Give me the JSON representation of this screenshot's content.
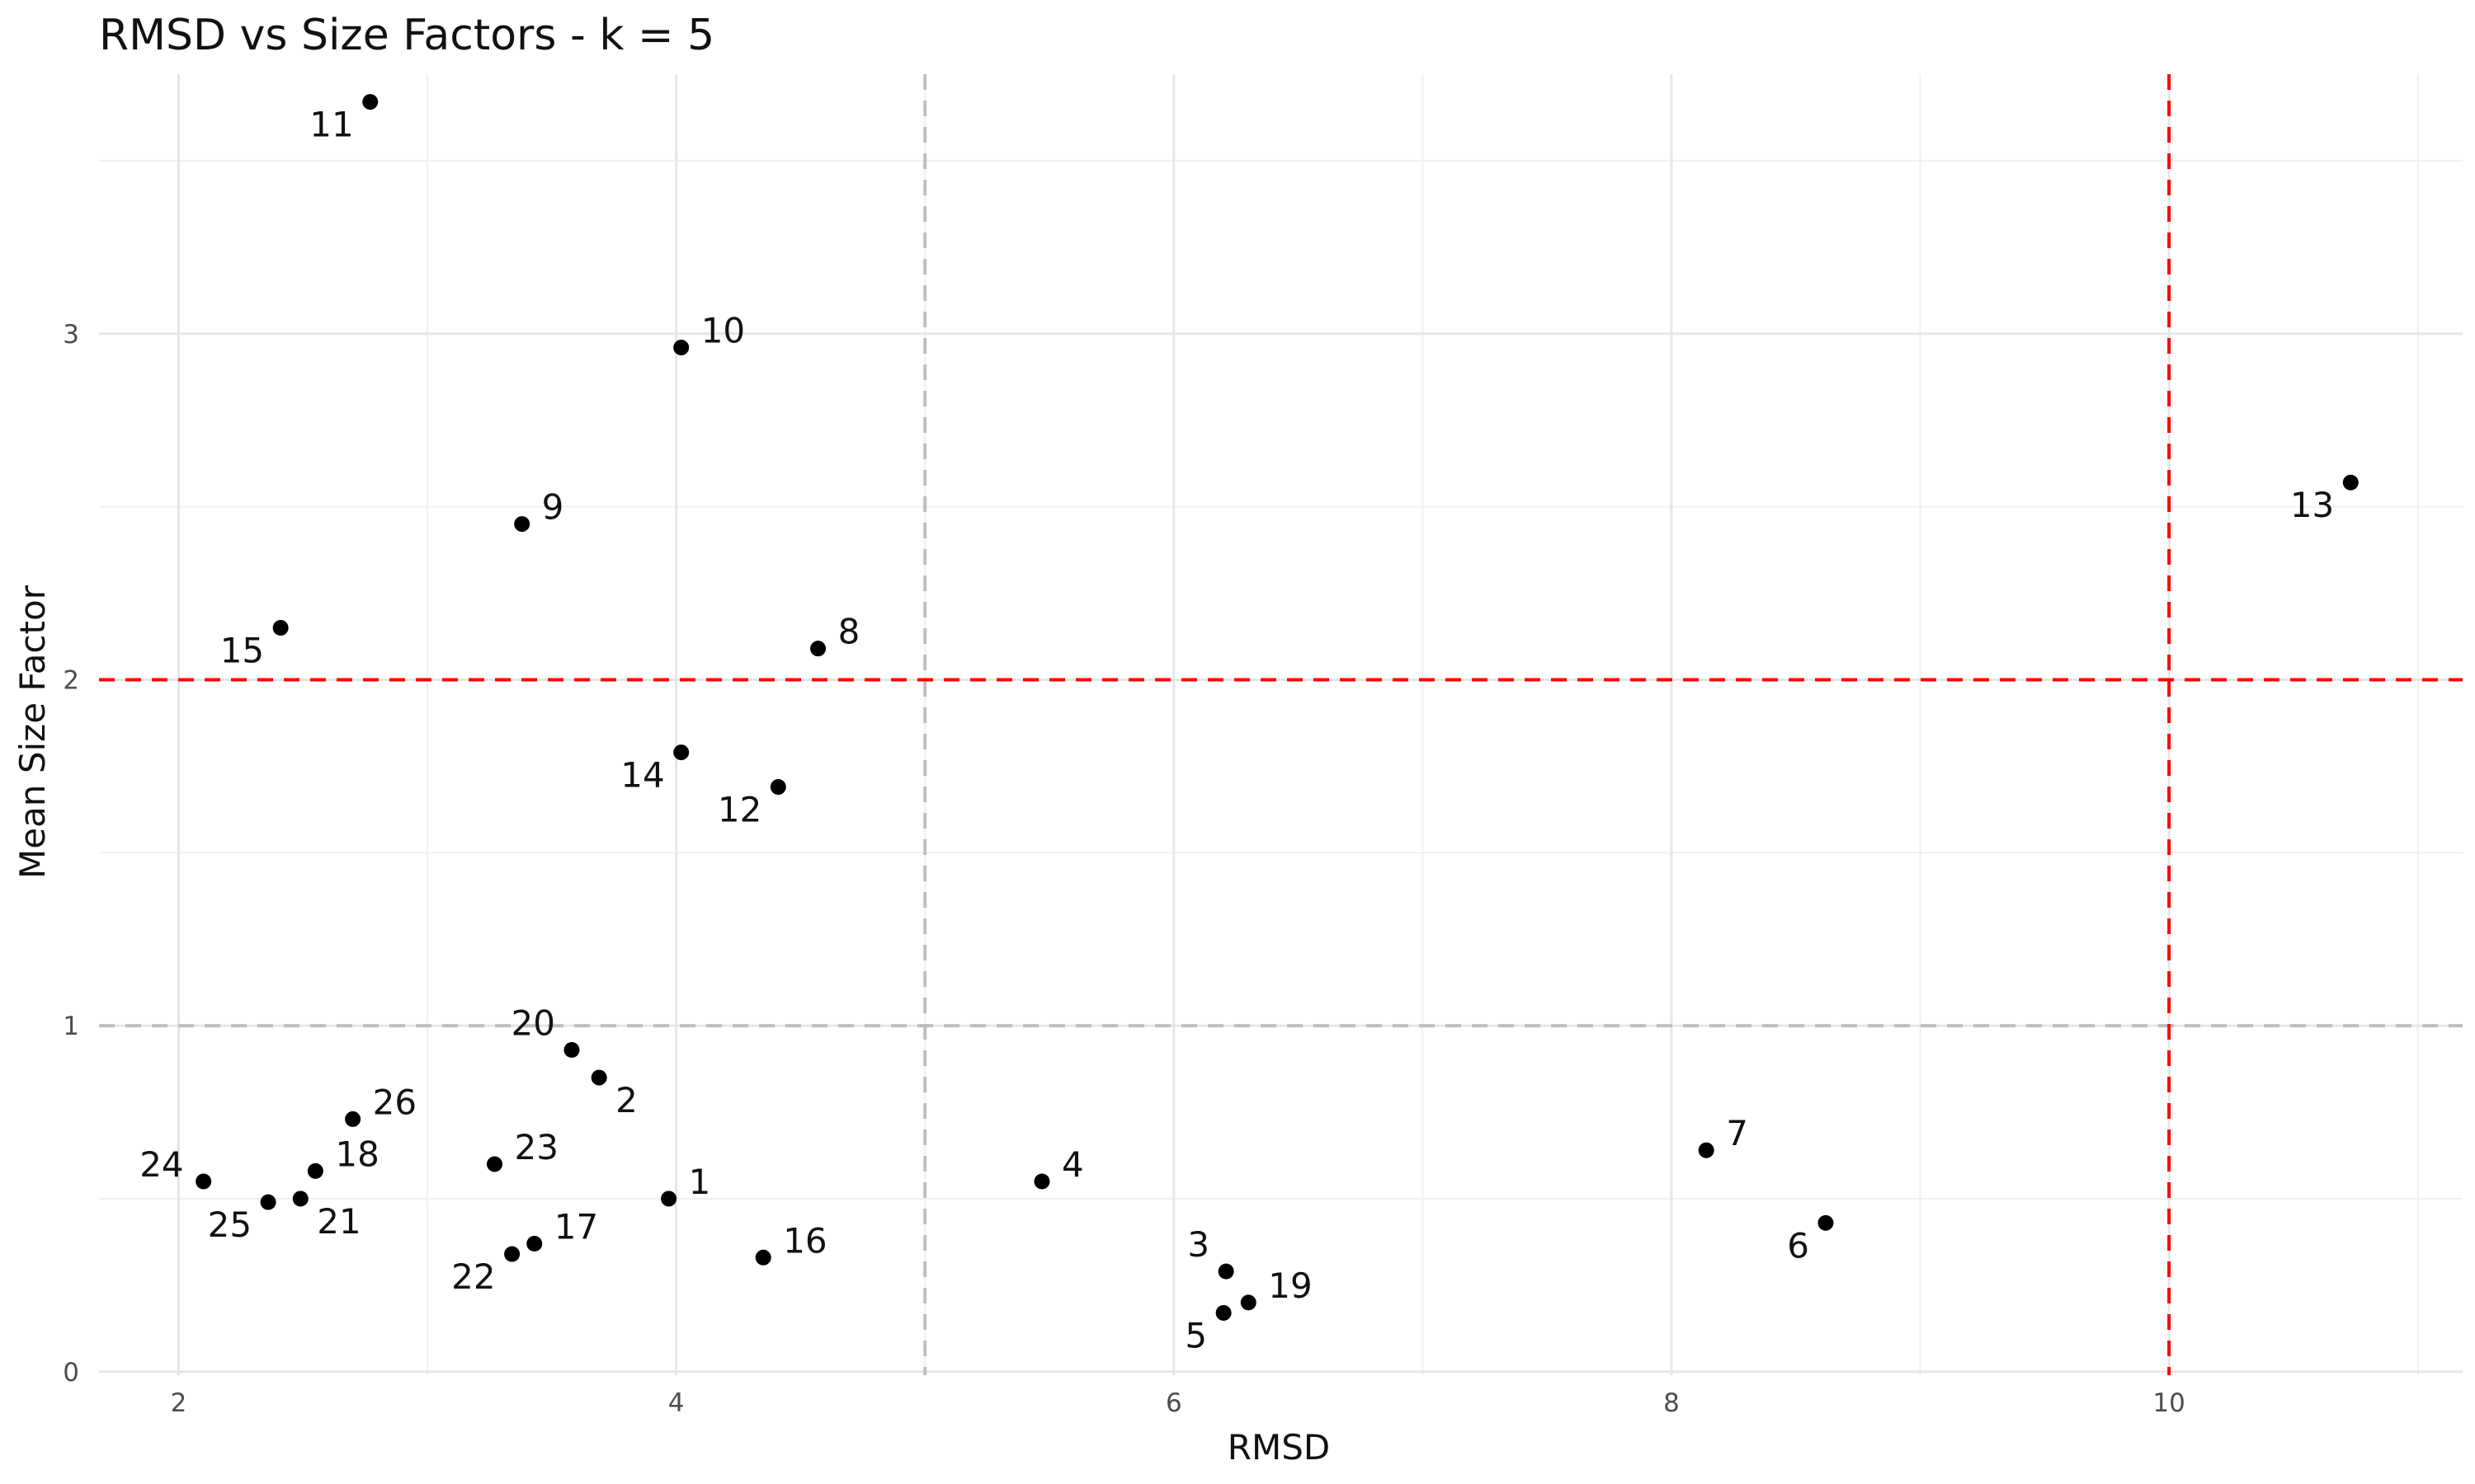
{
  "chart_data": {
    "type": "scatter",
    "title": "RMSD vs Size Factors - k = 5",
    "xlabel": "RMSD",
    "ylabel": "Mean Size Factor",
    "xlim": [
      1.68,
      11.18
    ],
    "ylim": [
      -0.01,
      3.75
    ],
    "x_ticks": [
      2,
      4,
      6,
      8,
      10
    ],
    "y_ticks": [
      0,
      1,
      2,
      3
    ],
    "grid": true,
    "legend": "none",
    "reference_lines": [
      {
        "axis": "x",
        "value": 5,
        "color": "#bebebe",
        "style": "dashed"
      },
      {
        "axis": "y",
        "value": 1,
        "color": "#bebebe",
        "style": "dashed"
      },
      {
        "axis": "x",
        "value": 10,
        "color": "#ff0000",
        "style": "dashed"
      },
      {
        "axis": "y",
        "value": 2,
        "color": "#ff0000",
        "style": "dashed"
      }
    ],
    "points": [
      {
        "label": "1",
        "x": 3.97,
        "y": 0.5,
        "label_pos": "right"
      },
      {
        "label": "2",
        "x": 3.69,
        "y": 0.85,
        "label_pos": "below-right"
      },
      {
        "label": "3",
        "x": 6.21,
        "y": 0.29,
        "label_pos": "above-left"
      },
      {
        "label": "4",
        "x": 5.47,
        "y": 0.55,
        "label_pos": "right"
      },
      {
        "label": "5",
        "x": 6.2,
        "y": 0.17,
        "label_pos": "below-left"
      },
      {
        "label": "6",
        "x": 8.62,
        "y": 0.43,
        "label_pos": "below-left"
      },
      {
        "label": "7",
        "x": 8.14,
        "y": 0.64,
        "label_pos": "right"
      },
      {
        "label": "8",
        "x": 4.57,
        "y": 2.09,
        "label_pos": "right"
      },
      {
        "label": "9",
        "x": 3.38,
        "y": 2.45,
        "label_pos": "right"
      },
      {
        "label": "10",
        "x": 4.02,
        "y": 2.96,
        "label_pos": "right"
      },
      {
        "label": "11",
        "x": 2.77,
        "y": 3.67,
        "label_pos": "below-left"
      },
      {
        "label": "12",
        "x": 4.41,
        "y": 1.69,
        "label_pos": "below-left"
      },
      {
        "label": "13",
        "x": 10.73,
        "y": 2.57,
        "label_pos": "below-left"
      },
      {
        "label": "14",
        "x": 4.02,
        "y": 1.79,
        "label_pos": "below-left"
      },
      {
        "label": "15",
        "x": 2.41,
        "y": 2.15,
        "label_pos": "below-left"
      },
      {
        "label": "16",
        "x": 4.35,
        "y": 0.33,
        "label_pos": "right"
      },
      {
        "label": "17",
        "x": 3.43,
        "y": 0.37,
        "label_pos": "right"
      },
      {
        "label": "18",
        "x": 2.55,
        "y": 0.58,
        "label_pos": "right"
      },
      {
        "label": "19",
        "x": 6.3,
        "y": 0.2,
        "label_pos": "right"
      },
      {
        "label": "20",
        "x": 3.58,
        "y": 0.93,
        "label_pos": "above-left"
      },
      {
        "label": "21",
        "x": 2.49,
        "y": 0.5,
        "label_pos": "below-right"
      },
      {
        "label": "22",
        "x": 3.34,
        "y": 0.34,
        "label_pos": "below-left"
      },
      {
        "label": "23",
        "x": 3.27,
        "y": 0.6,
        "label_pos": "right"
      },
      {
        "label": "24",
        "x": 2.1,
        "y": 0.55,
        "label_pos": "left"
      },
      {
        "label": "25",
        "x": 2.36,
        "y": 0.49,
        "label_pos": "below-left"
      },
      {
        "label": "26",
        "x": 2.7,
        "y": 0.73,
        "label_pos": "right"
      }
    ]
  }
}
